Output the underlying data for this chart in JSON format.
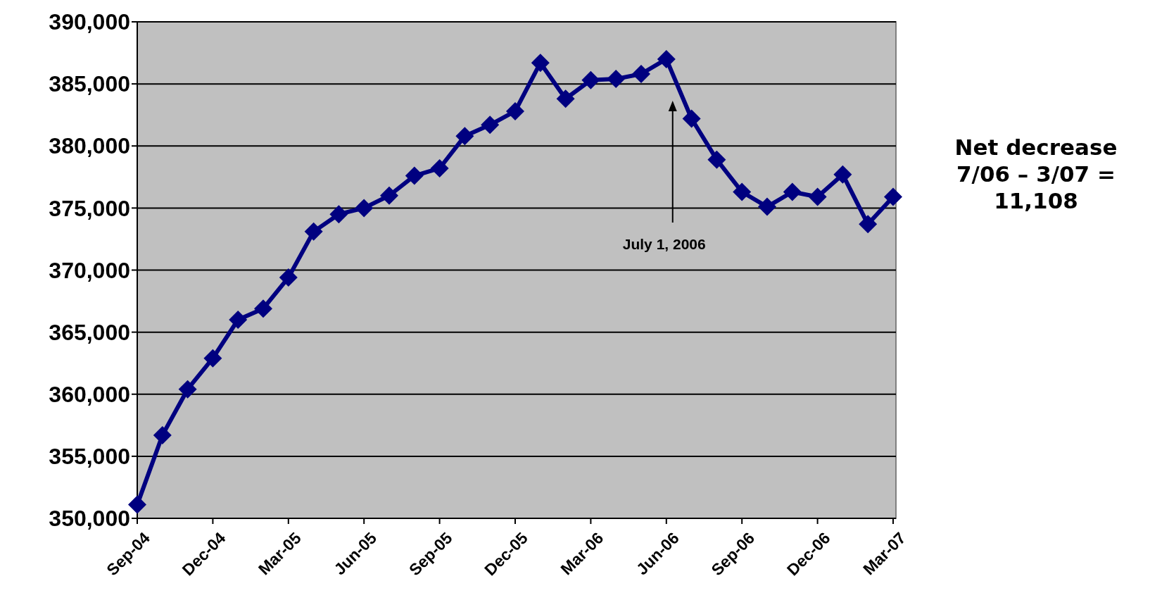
{
  "chart_data": {
    "type": "line",
    "categories": [
      "Sep-04",
      null,
      null,
      "Dec-04",
      null,
      null,
      "Mar-05",
      null,
      null,
      "Jun-05",
      null,
      null,
      "Sep-05",
      null,
      null,
      "Dec-05",
      null,
      null,
      "Mar-06",
      null,
      null,
      "Jun-06",
      null,
      null,
      "Sep-06",
      null,
      null,
      "Dec-06",
      null,
      null,
      "Mar-07"
    ],
    "series": [
      {
        "color": "#000080",
        "values": [
          351100,
          356700,
          360400,
          362900,
          366000,
          366900,
          369400,
          373100,
          374500,
          375000,
          376000,
          377600,
          378200,
          380800,
          381700,
          382800,
          386700,
          383800,
          385300,
          385400,
          385800,
          387000,
          382200,
          378900,
          376300,
          375100,
          376300,
          375900,
          377700,
          373700,
          375900
        ]
      }
    ],
    "ylim": [
      350000,
      390000
    ],
    "yticks": [
      {
        "value": 350000,
        "label": "350,000"
      },
      {
        "value": 355000,
        "label": "355,000"
      },
      {
        "value": 360000,
        "label": "360,000"
      },
      {
        "value": 365000,
        "label": "365,000"
      },
      {
        "value": 370000,
        "label": "370,000"
      },
      {
        "value": 375000,
        "label": "375,000"
      },
      {
        "value": 380000,
        "label": "380,000"
      },
      {
        "value": 385000,
        "label": "385,000"
      },
      {
        "value": 390000,
        "label": "390,000"
      }
    ],
    "grid": "y",
    "marker": "diamond",
    "line_style": "solid",
    "annotations": [
      "July 1, 2006",
      "Net decrease\n7/06 – 3/07 =\n11,108"
    ]
  }
}
